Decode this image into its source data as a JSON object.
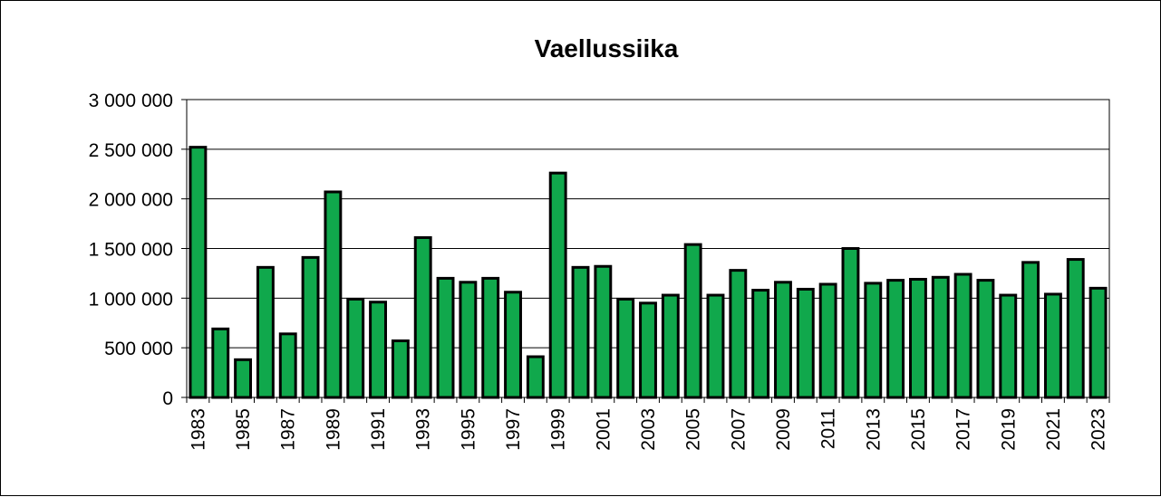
{
  "chart_data": {
    "type": "bar",
    "title": "Vaellussiika",
    "xlabel": "",
    "ylabel": "",
    "ylim": [
      0,
      3000000
    ],
    "yticks": [
      0,
      500000,
      1000000,
      1500000,
      2000000,
      2500000,
      3000000
    ],
    "ytick_labels": [
      "0",
      "500 000",
      "1 000 000",
      "1 500 000",
      "2 000 000",
      "2 500 000",
      "3 000 000"
    ],
    "grid": true,
    "legend": "none",
    "bar_color": "#10A84C",
    "categories": [
      "1983",
      "1984",
      "1985",
      "1986",
      "1987",
      "1988",
      "1989",
      "1990",
      "1991",
      "1992",
      "1993",
      "1994",
      "1995",
      "1996",
      "1997",
      "1998",
      "1999",
      "2000",
      "2001",
      "2002",
      "2003",
      "2004",
      "2005",
      "2006",
      "2007",
      "2008",
      "2009",
      "2010",
      "2011",
      "2012",
      "2013",
      "2014",
      "2015",
      "2016",
      "2017",
      "2018",
      "2019",
      "2020",
      "2021",
      "2022",
      "2023"
    ],
    "xtick_labels": [
      "1983",
      "1985",
      "1987",
      "1989",
      "1991",
      "1993",
      "1995",
      "1997",
      "1999",
      "2001",
      "2003",
      "2005",
      "2007",
      "2009",
      "2011",
      "2013",
      "2015",
      "2017",
      "2019",
      "2021",
      "2023"
    ],
    "values": [
      2520000,
      690000,
      380000,
      1310000,
      640000,
      1410000,
      2070000,
      990000,
      960000,
      570000,
      1610000,
      1200000,
      1160000,
      1200000,
      1060000,
      410000,
      2260000,
      1310000,
      1320000,
      990000,
      950000,
      1030000,
      1540000,
      1030000,
      1280000,
      1080000,
      1160000,
      1090000,
      1140000,
      1500000,
      1150000,
      1180000,
      1190000,
      1210000,
      1240000,
      1180000,
      1030000,
      1360000,
      1040000,
      1390000,
      1100000
    ]
  }
}
